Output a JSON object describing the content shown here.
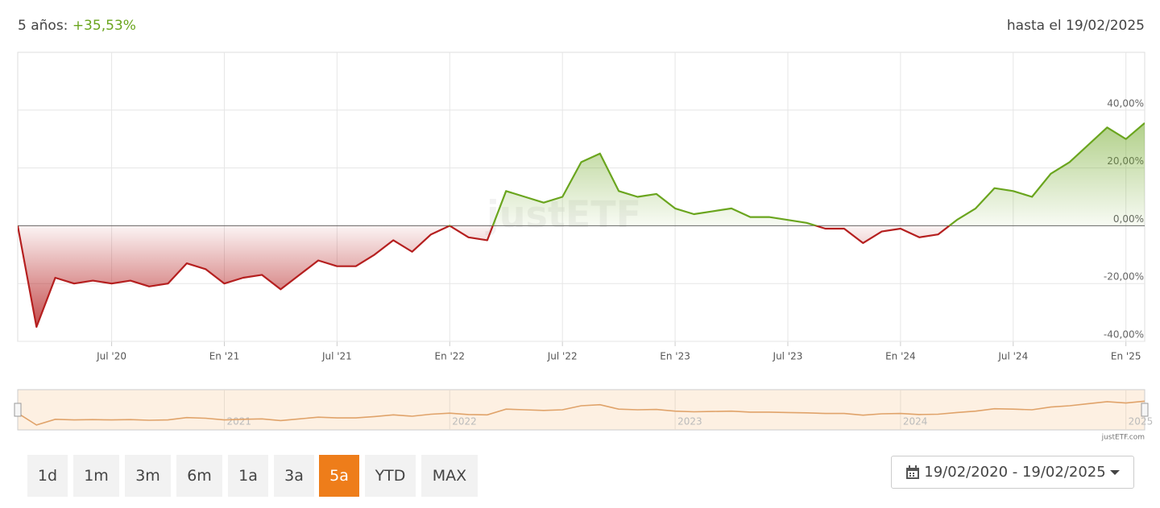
{
  "header": {
    "period_label": "5 años:",
    "return": "+35,53%",
    "as_of": "hasta el 19/02/2025"
  },
  "chart_data": {
    "type": "line",
    "x": [
      "2020-02",
      "2020-03",
      "2020-04",
      "2020-05",
      "2020-06",
      "2020-07",
      "2020-08",
      "2020-09",
      "2020-10",
      "2020-11",
      "2020-12",
      "2021-01",
      "2021-02",
      "2021-03",
      "2021-04",
      "2021-05",
      "2021-06",
      "2021-07",
      "2021-08",
      "2021-09",
      "2021-10",
      "2021-11",
      "2021-12",
      "2022-01",
      "2022-02",
      "2022-03",
      "2022-04",
      "2022-05",
      "2022-06",
      "2022-07",
      "2022-08",
      "2022-09",
      "2022-10",
      "2022-11",
      "2022-12",
      "2023-01",
      "2023-02",
      "2023-03",
      "2023-04",
      "2023-05",
      "2023-06",
      "2023-07",
      "2023-08",
      "2023-09",
      "2023-10",
      "2023-11",
      "2023-12",
      "2024-01",
      "2024-02",
      "2024-03",
      "2024-04",
      "2024-05",
      "2024-06",
      "2024-07",
      "2024-08",
      "2024-09",
      "2024-10",
      "2024-11",
      "2024-12",
      "2025-01",
      "2025-02"
    ],
    "values": [
      0,
      -35,
      -18,
      -20,
      -19,
      -20,
      -19,
      -21,
      -20,
      -13,
      -15,
      -20,
      -18,
      -17,
      -22,
      -17,
      -12,
      -14,
      -14,
      -10,
      -5,
      -9,
      -3,
      0,
      -4,
      -5,
      12,
      10,
      8,
      10,
      22,
      25,
      12,
      10,
      11,
      6,
      4,
      5,
      6,
      3,
      3,
      2,
      1,
      -1,
      -1,
      -6,
      -2,
      -1,
      -4,
      -3,
      2,
      6,
      13,
      12,
      10,
      18,
      22,
      28,
      34,
      30,
      35.53
    ],
    "color_positive": "#6aa51e",
    "color_negative": "#b51f1f",
    "xlim": [
      "2020-02",
      "2025-02"
    ],
    "xticks": [
      {
        "value": "2020-07",
        "label": "Jul '20"
      },
      {
        "value": "2021-01",
        "label": "En '21"
      },
      {
        "value": "2021-07",
        "label": "Jul '21"
      },
      {
        "value": "2022-01",
        "label": "En '22"
      },
      {
        "value": "2022-07",
        "label": "Jul '22"
      },
      {
        "value": "2023-01",
        "label": "En '23"
      },
      {
        "value": "2023-07",
        "label": "Jul '23"
      },
      {
        "value": "2024-01",
        "label": "En '24"
      },
      {
        "value": "2024-07",
        "label": "Jul '24"
      },
      {
        "value": "2025-01",
        "label": "En '25"
      }
    ],
    "ylim": [
      -40,
      60
    ],
    "yticks": [
      {
        "value": -40,
        "label": "-40,00%"
      },
      {
        "value": -20,
        "label": "-20,00%"
      },
      {
        "value": 0,
        "label": "0,00%"
      },
      {
        "value": 20,
        "label": "20,00%"
      },
      {
        "value": 40,
        "label": "40,00%"
      }
    ],
    "grid": true,
    "watermark": "justETF",
    "credit": "justETF.com",
    "navigator": {
      "color": "#e0a36a",
      "background": "#fdf0e2",
      "xticks": [
        {
          "value": "2021-01",
          "label": "2021"
        },
        {
          "value": "2022-01",
          "label": "2022"
        },
        {
          "value": "2023-01",
          "label": "2023"
        },
        {
          "value": "2024-01",
          "label": "2024"
        },
        {
          "value": "2025-01",
          "label": "2025"
        }
      ]
    }
  },
  "controls": {
    "ranges": [
      "1d",
      "1m",
      "3m",
      "6m",
      "1a",
      "3a",
      "5a",
      "YTD",
      "MAX"
    ],
    "active": 6,
    "date_range": "19/02/2020 - 19/02/2025"
  }
}
